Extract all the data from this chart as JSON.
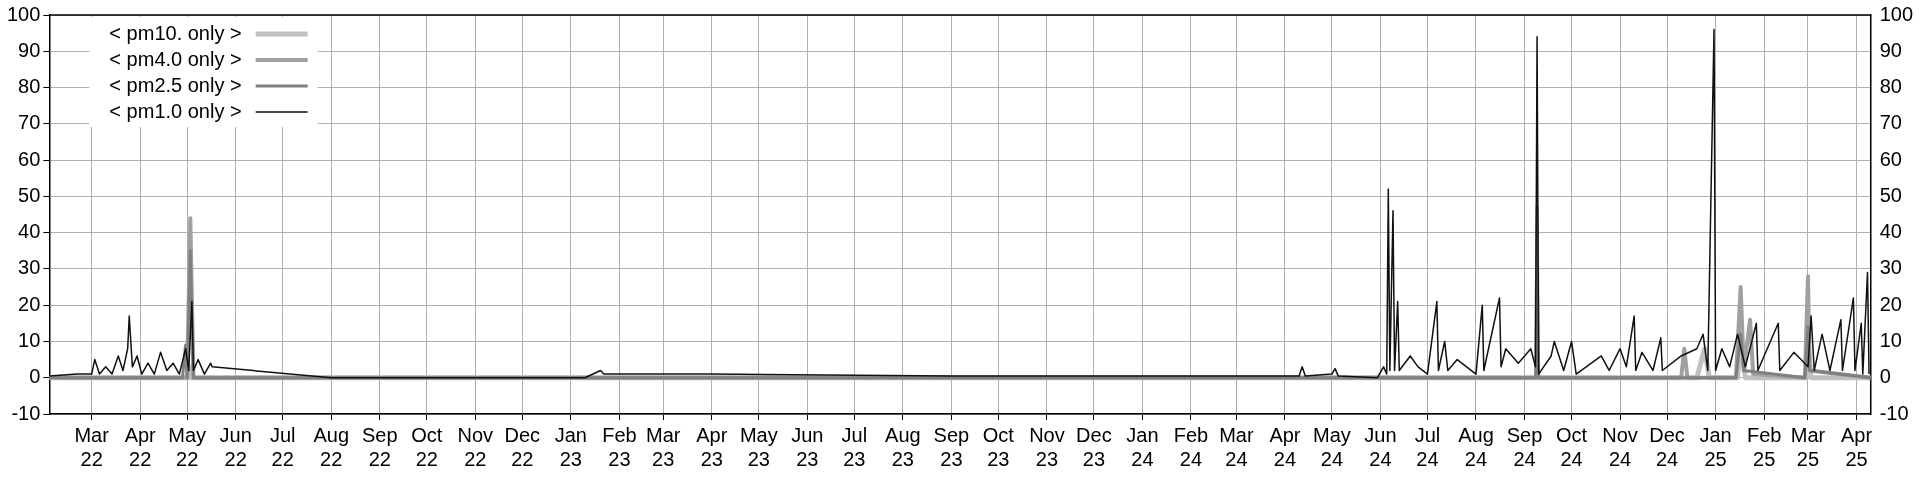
{
  "chart_data": {
    "type": "line",
    "legend": "top left",
    "grid": true,
    "marker": "none",
    "line_style": "solid",
    "xlim": [
      "2022-02-02",
      "2025-04-10"
    ],
    "xticks": [
      {
        "value": "2022-03-01",
        "label": "Mar 22"
      },
      {
        "value": "2022-04-01",
        "label": "Apr 22"
      },
      {
        "value": "2022-05-01",
        "label": "May 22"
      },
      {
        "value": "2022-06-01",
        "label": "Jun 22"
      },
      {
        "value": "2022-07-01",
        "label": "Jul 22"
      },
      {
        "value": "2022-08-01",
        "label": "Aug 22"
      },
      {
        "value": "2022-09-01",
        "label": "Sep 22"
      },
      {
        "value": "2022-10-01",
        "label": "Oct 22"
      },
      {
        "value": "2022-11-01",
        "label": "Nov 22"
      },
      {
        "value": "2022-12-01",
        "label": "Dec 22"
      },
      {
        "value": "2023-01-01",
        "label": "Jan 23"
      },
      {
        "value": "2023-02-01",
        "label": "Feb 23"
      },
      {
        "value": "2023-03-01",
        "label": "Mar 23"
      },
      {
        "value": "2023-04-01",
        "label": "Apr 23"
      },
      {
        "value": "2023-05-01",
        "label": "May 23"
      },
      {
        "value": "2023-06-01",
        "label": "Jun 23"
      },
      {
        "value": "2023-07-01",
        "label": "Jul 23"
      },
      {
        "value": "2023-08-01",
        "label": "Aug 23"
      },
      {
        "value": "2023-09-01",
        "label": "Sep 23"
      },
      {
        "value": "2023-10-01",
        "label": "Oct 23"
      },
      {
        "value": "2023-11-01",
        "label": "Nov 23"
      },
      {
        "value": "2023-12-01",
        "label": "Dec 23"
      },
      {
        "value": "2024-01-01",
        "label": "Jan 24"
      },
      {
        "value": "2024-02-01",
        "label": "Feb 24"
      },
      {
        "value": "2024-03-01",
        "label": "Mar 24"
      },
      {
        "value": "2024-04-01",
        "label": "Apr 24"
      },
      {
        "value": "2024-05-01",
        "label": "May 24"
      },
      {
        "value": "2024-06-01",
        "label": "Jun 24"
      },
      {
        "value": "2024-07-01",
        "label": "Jul 24"
      },
      {
        "value": "2024-08-01",
        "label": "Aug 24"
      },
      {
        "value": "2024-09-01",
        "label": "Sep 24"
      },
      {
        "value": "2024-10-01",
        "label": "Oct 24"
      },
      {
        "value": "2024-11-01",
        "label": "Nov 24"
      },
      {
        "value": "2024-12-01",
        "label": "Dec 24"
      },
      {
        "value": "2025-01-01",
        "label": "Jan 25"
      },
      {
        "value": "2025-02-01",
        "label": "Feb 25"
      },
      {
        "value": "2025-03-01",
        "label": "Mar 25"
      },
      {
        "value": "2025-04-01",
        "label": "Apr 25"
      }
    ],
    "ylim": [
      -10,
      100
    ],
    "yticks": [
      -10,
      0,
      10,
      20,
      30,
      40,
      50,
      60,
      70,
      80,
      90,
      100
    ],
    "y2lim": [
      -10,
      100
    ],
    "y2ticks": [
      -10,
      0,
      10,
      20,
      30,
      40,
      50,
      60,
      70,
      80,
      90,
      100
    ],
    "series": [
      {
        "name": "< pm10. only >",
        "color": "#c0c0c0",
        "x": [
          "2022-02-02",
          "2022-05-02",
          "2022-05-03",
          "2022-05-04",
          "2024-06-01",
          "2024-12-20",
          "2024-12-25",
          "2024-12-28",
          "2025-01-15",
          "2025-01-17",
          "2025-01-20",
          "2025-02-28",
          "2025-03-01",
          "2025-03-03",
          "2025-04-10"
        ],
        "values": [
          0,
          0,
          3,
          0,
          0,
          0,
          8,
          0,
          0,
          10,
          0,
          0,
          10,
          0,
          0
        ]
      },
      {
        "name": "< pm4.0 only >",
        "color": "#a0a0a0",
        "x": [
          "2022-02-02",
          "2022-05-01",
          "2022-05-03",
          "2022-05-05",
          "2024-06-01",
          "2024-12-10",
          "2024-12-12",
          "2024-12-14",
          "2025-01-14",
          "2025-01-17",
          "2025-01-19",
          "2025-01-23",
          "2025-01-25",
          "2025-02-27",
          "2025-03-01",
          "2025-03-02",
          "2025-04-10"
        ],
        "values": [
          0,
          0,
          44,
          0,
          0,
          0,
          8,
          0,
          0,
          25,
          2,
          16,
          1,
          0,
          28,
          2,
          0
        ]
      },
      {
        "name": "< pm2.5 only >",
        "color": "#808080",
        "x": [
          "2022-02-02",
          "2022-04-28",
          "2022-04-30",
          "2022-05-01",
          "2022-05-03",
          "2022-05-05",
          "2024-06-01",
          "2024-09-08",
          "2024-09-09",
          "2024-09-10",
          "2025-01-14",
          "2025-01-17",
          "2025-01-19",
          "2025-02-27",
          "2025-03-01",
          "2025-03-02",
          "2025-04-10"
        ],
        "values": [
          0,
          0,
          9,
          0,
          35,
          0,
          0,
          0,
          47,
          0,
          0,
          12,
          2,
          0,
          14,
          2,
          0
        ]
      },
      {
        "name": "< pm1.0 only >",
        "color": "#101010",
        "x": [
          "2022-02-02",
          "2022-02-20",
          "2022-03-01",
          "2022-03-03",
          "2022-03-06",
          "2022-03-10",
          "2022-03-14",
          "2022-03-18",
          "2022-03-21",
          "2022-03-24",
          "2022-03-25",
          "2022-03-27",
          "2022-03-30",
          "2022-04-02",
          "2022-04-06",
          "2022-04-10",
          "2022-04-14",
          "2022-04-18",
          "2022-04-22",
          "2022-04-26",
          "2022-04-30",
          "2022-05-02",
          "2022-05-04",
          "2022-05-05",
          "2022-05-08",
          "2022-05-12",
          "2022-05-16",
          "2022-05-17",
          "2022-08-01",
          "2023-01-10",
          "2023-01-20",
          "2023-01-22",
          "2023-04-01",
          "2023-09-01",
          "2024-04-10",
          "2024-04-12",
          "2024-04-14",
          "2024-05-01",
          "2024-05-03",
          "2024-05-05",
          "2024-05-30",
          "2024-06-03",
          "2024-06-05",
          "2024-06-06",
          "2024-06-07",
          "2024-06-09",
          "2024-06-10",
          "2024-06-12",
          "2024-06-13",
          "2024-06-20",
          "2024-06-25",
          "2024-07-01",
          "2024-07-07",
          "2024-07-08",
          "2024-07-12",
          "2024-07-14",
          "2024-07-20",
          "2024-08-01",
          "2024-08-05",
          "2024-08-06",
          "2024-08-16",
          "2024-08-17",
          "2024-08-20",
          "2024-08-28",
          "2024-09-05",
          "2024-09-08",
          "2024-09-09",
          "2024-09-10",
          "2024-09-18",
          "2024-09-20",
          "2024-09-26",
          "2024-10-01",
          "2024-10-04",
          "2024-10-20",
          "2024-10-25",
          "2024-11-01",
          "2024-11-05",
          "2024-11-10",
          "2024-11-11",
          "2024-11-15",
          "2024-11-22",
          "2024-11-27",
          "2024-11-28",
          "2024-12-10",
          "2024-12-20",
          "2024-12-24",
          "2024-12-27",
          "2024-12-31",
          "2025-01-01",
          "2025-01-05",
          "2025-01-10",
          "2025-01-15",
          "2025-01-20",
          "2025-01-27",
          "2025-01-28",
          "2025-02-10",
          "2025-02-11",
          "2025-02-20",
          "2025-03-01",
          "2025-03-03",
          "2025-03-05",
          "2025-03-10",
          "2025-03-15",
          "2025-03-22",
          "2025-03-23",
          "2025-03-30",
          "2025-03-31",
          "2025-04-04",
          "2025-04-05",
          "2025-04-08",
          "2025-04-09"
        ],
        "values": [
          0.5,
          1,
          1,
          5,
          1,
          3,
          1,
          6,
          2,
          8,
          17,
          3,
          6,
          1,
          4,
          1,
          7,
          2,
          4,
          1,
          8,
          2,
          21,
          2,
          5,
          1,
          4,
          3,
          0,
          0,
          2,
          1,
          1,
          0.5,
          0.5,
          3,
          0.5,
          1,
          2.5,
          0.5,
          0,
          3,
          1,
          52,
          2,
          46,
          2,
          21,
          2,
          6,
          3,
          1,
          21,
          2,
          10,
          2,
          5,
          1,
          20,
          2,
          22,
          3,
          8,
          4,
          8,
          3,
          94,
          1,
          6,
          10,
          2,
          10,
          1,
          6,
          2,
          8,
          3,
          17,
          2,
          7,
          2,
          11,
          2,
          6,
          8,
          12,
          2,
          96,
          2,
          8,
          3,
          12,
          3,
          15,
          2,
          15,
          2,
          7,
          3,
          17,
          2,
          12,
          2,
          16,
          2,
          22,
          2,
          15,
          1,
          29,
          1
        ]
      }
    ]
  }
}
